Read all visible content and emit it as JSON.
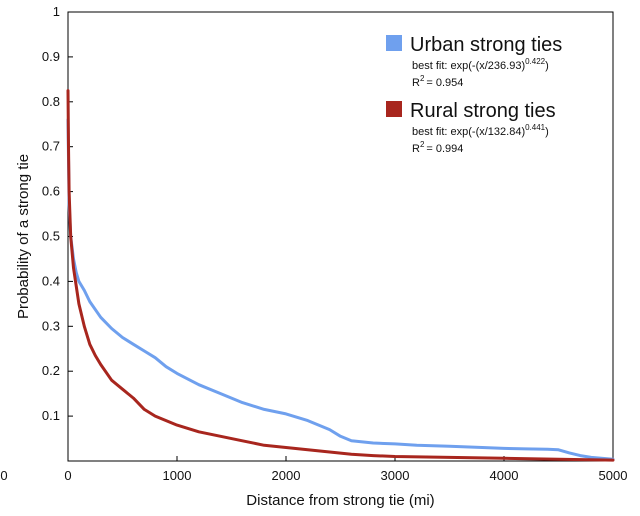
{
  "chart_data": {
    "type": "line",
    "title": "",
    "xlabel": "Distance from strong tie (mi)",
    "ylabel": "Probability of a strong tie",
    "xlim": [
      0,
      5000
    ],
    "ylim": [
      0,
      1
    ],
    "x_ticks": [
      0,
      1000,
      2000,
      3000,
      4000,
      5000
    ],
    "x_tick_labels": [
      "0",
      "1000",
      "2000",
      "3000",
      "4000",
      "5000"
    ],
    "y_ticks": [
      0.1,
      0.2,
      0.3,
      0.4,
      0.5,
      0.6,
      0.7,
      0.8,
      0.9,
      1
    ],
    "y_tick_labels": [
      "0.1",
      "0.2",
      "0.3",
      "0.4",
      "0.5",
      "0.6",
      "0.7",
      "0.8",
      "0.9",
      "1"
    ],
    "edge_label": "0",
    "grid": false,
    "legend_position": "top-right",
    "series": [
      {
        "name": "Urban strong ties",
        "color": "#6fa0ee",
        "fit_prefix": "best fit: exp(-(x/236.93)",
        "fit_exponent": "0.422",
        "fit_suffix": ")",
        "r2_label": "R",
        "r2_sup": "2",
        "r2_value": "= 0.954",
        "x": [
          0,
          10,
          25,
          50,
          75,
          100,
          150,
          200,
          300,
          400,
          500,
          600,
          700,
          800,
          900,
          1000,
          1200,
          1400,
          1600,
          1800,
          2000,
          2200,
          2400,
          2500,
          2600,
          2800,
          3000,
          3200,
          3500,
          3800,
          4000,
          4200,
          4400,
          4500,
          4600,
          4700,
          4800,
          5000
        ],
        "y": [
          0.76,
          0.57,
          0.5,
          0.45,
          0.42,
          0.4,
          0.38,
          0.355,
          0.32,
          0.295,
          0.275,
          0.26,
          0.245,
          0.23,
          0.21,
          0.195,
          0.17,
          0.15,
          0.13,
          0.115,
          0.105,
          0.09,
          0.07,
          0.055,
          0.045,
          0.04,
          0.038,
          0.035,
          0.033,
          0.03,
          0.028,
          0.027,
          0.026,
          0.025,
          0.018,
          0.012,
          0.008,
          0.004
        ]
      },
      {
        "name": "Rural strong ties",
        "color": "#a8261e",
        "fit_prefix": "best fit: exp(-(x/132.84)",
        "fit_exponent": "0.441",
        "fit_suffix": ")",
        "r2_label": "R",
        "r2_sup": "2",
        "r2_value": "= 0.994",
        "x": [
          0,
          5,
          10,
          25,
          50,
          75,
          100,
          150,
          200,
          250,
          300,
          400,
          500,
          600,
          700,
          800,
          900,
          1000,
          1200,
          1400,
          1600,
          1800,
          2000,
          2200,
          2400,
          2600,
          2800,
          3000,
          3500,
          4000,
          4500,
          5000
        ],
        "y": [
          0.825,
          0.7,
          0.6,
          0.5,
          0.43,
          0.39,
          0.35,
          0.3,
          0.26,
          0.235,
          0.215,
          0.18,
          0.16,
          0.14,
          0.115,
          0.1,
          0.09,
          0.08,
          0.065,
          0.055,
          0.045,
          0.035,
          0.03,
          0.025,
          0.02,
          0.015,
          0.012,
          0.01,
          0.008,
          0.006,
          0.004,
          0.002
        ]
      }
    ]
  }
}
